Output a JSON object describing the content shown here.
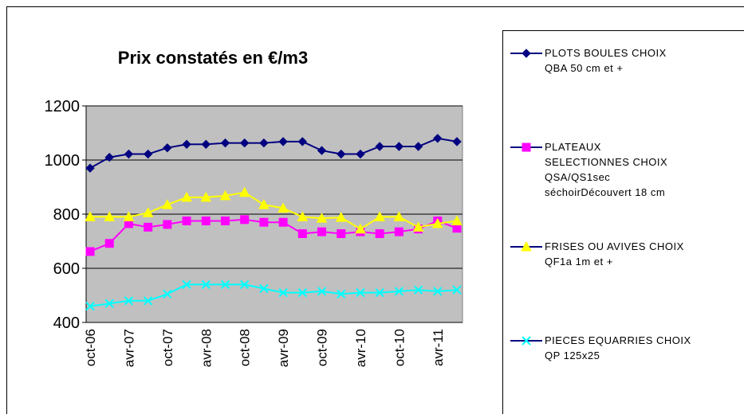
{
  "chart_data": {
    "type": "line",
    "title": "Prix constatés en €/m3",
    "categories": [
      "oct-06",
      null,
      "avr-07",
      null,
      "oct-07",
      null,
      "avr-08",
      null,
      "oct-08",
      null,
      "avr-09",
      null,
      "oct-09",
      null,
      "avr-10",
      null,
      "oct-10",
      null,
      "avr-11",
      null
    ],
    "series": [
      {
        "name": "PLOTS BOULES CHOIX\nQBA  50 cm et +",
        "color": "#000080",
        "marker": "diamond",
        "values": [
          970,
          1010,
          1022,
          1022,
          1045,
          1058,
          1058,
          1063,
          1063,
          1063,
          1068,
          1068,
          1035,
          1022,
          1022,
          1050,
          1050,
          1050,
          1080,
          1068
        ]
      },
      {
        "name": "PLATEAUX\nSELECTIONNES CHOIX\nQSA/QS1sec\nséchoirDécouvert 18 cm",
        "color": "#ff00ff",
        "marker": "square",
        "values": [
          662,
          692,
          765,
          752,
          762,
          775,
          775,
          775,
          780,
          770,
          770,
          728,
          735,
          728,
          735,
          728,
          735,
          745,
          775,
          748
        ]
      },
      {
        "name": "FRISES OU AVIVES CHOIX\nQF1a 1m et +",
        "color": "#ffff00",
        "marker": "triangle",
        "values": [
          790,
          790,
          790,
          805,
          835,
          862,
          862,
          868,
          880,
          835,
          822,
          790,
          785,
          788,
          745,
          790,
          790,
          752,
          765,
          775
        ]
      },
      {
        "name": "PIECES EQUARRIES CHOIX\nQP 125x25",
        "color": "#00ffff",
        "marker": "x",
        "values": [
          460,
          470,
          480,
          480,
          505,
          540,
          540,
          540,
          540,
          525,
          510,
          510,
          515,
          505,
          510,
          510,
          515,
          520,
          515,
          520
        ]
      }
    ],
    "ylim": [
      400,
      1200
    ],
    "yticks": [
      400,
      600,
      800,
      1000,
      1200
    ],
    "grid": true,
    "plot_background": "#c0c0c0",
    "legend": "right"
  }
}
